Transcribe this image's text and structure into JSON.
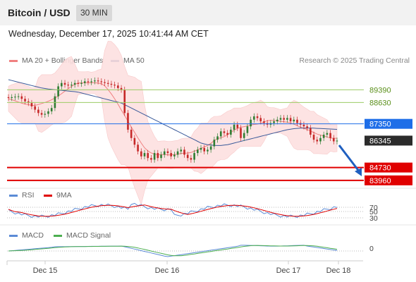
{
  "header": {
    "title": "Bitcoin / USD",
    "timeframe": "30 MIN"
  },
  "datetime": "Wednesday, December 17, 2025 10:41:44 AM CET",
  "legend": {
    "ma20": {
      "label": "MA 20 + Bollinger Bands",
      "color": "#f08080"
    },
    "ma50": {
      "label": "MA 50",
      "color": "#2f4f8f"
    },
    "credit": "Research © 2025 Trading Central"
  },
  "colors": {
    "up": "#2e7d32",
    "down": "#c62828",
    "blue": "#1e6ee8",
    "red": "#e00000",
    "green_line": "#9ccc65",
    "band": "#fde0e0"
  },
  "chart_data": [
    {
      "type": "line",
      "title": "",
      "ylim": [
        83700,
        90550
      ],
      "x_labels": [
        "Dec 15",
        "Dec 16",
        "Dec 17",
        "Dec 18"
      ],
      "levels": [
        {
          "value": 89390,
          "label": "89390",
          "kind": "resistance"
        },
        {
          "value": 88630,
          "label": "88630",
          "kind": "resistance"
        },
        {
          "value": 87350,
          "label": "87350",
          "kind": "pivot"
        },
        {
          "value": 86345,
          "label": "86345",
          "kind": "last"
        },
        {
          "value": 84730,
          "label": "84730",
          "kind": "support"
        },
        {
          "value": 83960,
          "label": "83960",
          "kind": "support"
        }
      ],
      "close": [
        88900,
        88950,
        88980,
        89000,
        88850,
        88700,
        88600,
        88400,
        88200,
        88000,
        87900,
        87950,
        88100,
        88300,
        89000,
        89600,
        89800,
        89700,
        89650,
        89700,
        89800,
        89750,
        89800,
        89900,
        89850,
        89900,
        89950,
        89900,
        89850,
        89800,
        89750,
        89700,
        89650,
        89500,
        89400,
        88000,
        87000,
        86500,
        86100,
        85700,
        85400,
        85600,
        85300,
        85200,
        85600,
        85300,
        85500,
        85700,
        85600,
        85400,
        85500,
        85700,
        85800,
        85500,
        85300,
        85200,
        85600,
        85800,
        85900,
        85700,
        85800,
        86000,
        86400,
        86600,
        86900,
        86800,
        86700,
        87000,
        87300,
        87100,
        86500,
        86800,
        87200,
        87600,
        87800,
        87700,
        87500,
        87400,
        87300,
        87400,
        87500,
        87600,
        87700,
        87600,
        87700,
        87500,
        87600,
        87400,
        87300,
        87200,
        87100,
        86700,
        86400,
        86300,
        86500,
        86700,
        86800,
        86500,
        86300,
        86345
      ],
      "ma50": [
        90000,
        89950,
        89900,
        89850,
        89800,
        89750,
        89700,
        89650,
        89600,
        89550,
        89500,
        89470,
        89440,
        89420,
        89400,
        89380,
        89360,
        89340,
        89320,
        89300,
        89280,
        89250,
        89200,
        89150,
        89100,
        89050,
        89000,
        88950,
        88900,
        88850,
        88800,
        88750,
        88700,
        88650,
        88600,
        88500,
        88400,
        88300,
        88200,
        88100,
        88000,
        87900,
        87800,
        87700,
        87600,
        87500,
        87400,
        87300,
        87200,
        87100,
        87000,
        86900,
        86800,
        86700,
        86600,
        86500,
        86400,
        86300,
        86200,
        86150,
        86100,
        86080,
        86060,
        86050,
        86050,
        86080,
        86100,
        86150,
        86200,
        86250,
        86300,
        86350,
        86400,
        86450,
        86500,
        86550,
        86600,
        86650,
        86700,
        86750,
        86800,
        86850,
        86900,
        86950,
        87000,
        87030,
        87060,
        87080,
        87090,
        87100,
        87100,
        87100,
        87090,
        87080,
        87070,
        87060,
        87050,
        87040,
        87030,
        87020
      ]
    },
    {
      "type": "line",
      "title": "",
      "series": [
        {
          "name": "RSI",
          "color": "#5b8bd6"
        },
        {
          "name": "9MA",
          "color": "#e00000"
        }
      ],
      "levels": [
        70,
        50,
        30
      ],
      "ylim": [
        20,
        80
      ]
    },
    {
      "type": "line",
      "title": "",
      "series": [
        {
          "name": "MACD",
          "color": "#5b8bd6"
        },
        {
          "name": "MACD Signal",
          "color": "#4caf50"
        }
      ],
      "levels": [
        0
      ]
    }
  ]
}
